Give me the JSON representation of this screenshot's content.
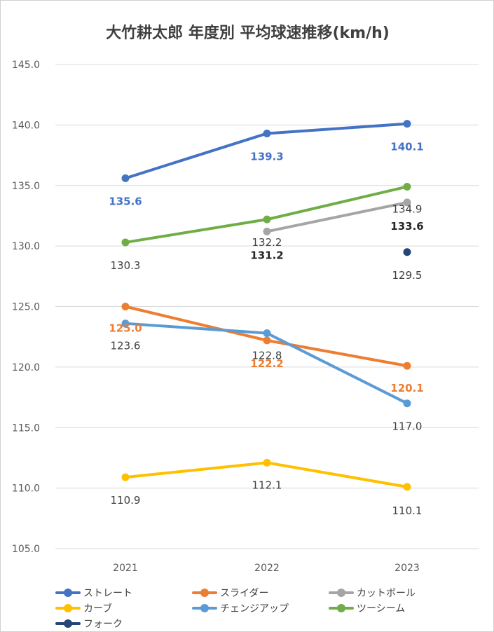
{
  "chart_data": {
    "type": "line",
    "title": "大竹耕太郎 年度別 平均球速推移(km/h)",
    "categories": [
      "2021",
      "2022",
      "2023"
    ],
    "ylim": [
      105.0,
      145.0
    ],
    "yticks": [
      "145.0",
      "140.0",
      "135.0",
      "130.0",
      "125.0",
      "120.0",
      "115.0",
      "110.0",
      "105.0"
    ],
    "ytick_values": [
      145,
      140,
      135,
      130,
      125,
      120,
      115,
      110,
      105
    ],
    "grid": true,
    "legend_position": "bottom",
    "series": [
      {
        "name": "ストレート",
        "color": "#4472C4",
        "values": [
          135.6,
          139.3,
          140.1
        ],
        "labels": [
          "135.6",
          "139.3",
          "140.1"
        ],
        "label_color": "#4472C4",
        "label_bold": true
      },
      {
        "name": "スライダー",
        "color": "#ED7D31",
        "values": [
          125.0,
          122.2,
          120.1
        ],
        "labels": [
          "125.0",
          "122.2",
          "120.1"
        ],
        "label_color": "#ED7D31",
        "label_bold": true
      },
      {
        "name": "カットボール",
        "color": "#A5A5A5",
        "values": [
          null,
          131.2,
          133.6
        ],
        "labels": [
          null,
          "131.2",
          "133.6"
        ],
        "label_color": "#262626",
        "label_bold": true
      },
      {
        "name": "カーブ",
        "color": "#FFC000",
        "values": [
          110.9,
          112.1,
          110.1
        ],
        "labels": [
          "110.9",
          "112.1",
          "110.1"
        ],
        "label_color": "#404040",
        "label_bold": false
      },
      {
        "name": "チェンジアップ",
        "color": "#5B9BD5",
        "values": [
          123.6,
          122.8,
          117.0
        ],
        "labels": [
          "123.6",
          "122.8",
          "117.0"
        ],
        "label_color": "#404040",
        "label_bold": false
      },
      {
        "name": "ツーシーム",
        "color": "#70AD47",
        "values": [
          130.3,
          132.2,
          134.9
        ],
        "labels": [
          "130.3",
          "132.2",
          "134.9"
        ],
        "label_color": "#404040",
        "label_bold": false
      },
      {
        "name": "フォーク",
        "color": "#264478",
        "values": [
          null,
          null,
          129.5
        ],
        "labels": [
          null,
          null,
          "129.5"
        ],
        "label_color": "#404040",
        "label_bold": false
      }
    ]
  }
}
